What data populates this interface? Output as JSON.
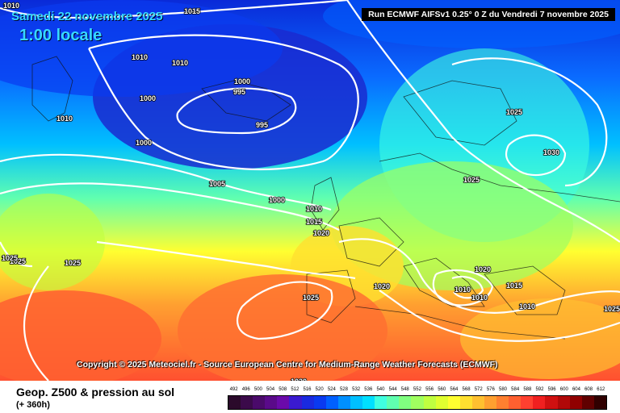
{
  "header": {
    "date": "Samedi 22 novembre 2025",
    "time": "1:00 locale",
    "run": "Run ECMWF AIFSv1 0.25° 0 Z du Vendredi 7 novembre 2025"
  },
  "copyright": "Copyright © 2025 Meteociel.fr - Source European Centre for Medium-Range Weather Forecasts (ECMWF)",
  "footer": {
    "product": "Geop. Z500 & pression au sol",
    "lead": "(+ 360h)"
  },
  "scale": {
    "labels": [
      "492",
      "496",
      "500",
      "504",
      "508",
      "512",
      "516",
      "520",
      "524",
      "528",
      "532",
      "536",
      "540",
      "544",
      "548",
      "552",
      "556",
      "560",
      "564",
      "568",
      "572",
      "576",
      "580",
      "584",
      "588",
      "592",
      "596",
      "600",
      "604",
      "608",
      "612"
    ],
    "colors": [
      "#2b0a2b",
      "#3b0a4a",
      "#4a0a6a",
      "#5a0a8a",
      "#6a0aaa",
      "#3a1ad0",
      "#1a2ae0",
      "#0a3af0",
      "#0060ff",
      "#0090ff",
      "#00c0ff",
      "#00e0ff",
      "#40ffe0",
      "#60ffb0",
      "#80ff80",
      "#a0ff60",
      "#c0ff40",
      "#e0ff30",
      "#ffff30",
      "#ffe030",
      "#ffc030",
      "#ffa030",
      "#ff8030",
      "#ff6030",
      "#ff4030",
      "#f02020",
      "#d01010",
      "#b00808",
      "#900000",
      "#600000",
      "#300000"
    ]
  },
  "isobars": [
    "1010",
    "1015",
    "1010",
    "1010",
    "1000",
    "995",
    "1000",
    "1010",
    "995",
    "1000",
    "1005",
    "1000",
    "1010",
    "1015",
    "1020",
    "1025",
    "1025",
    "1025",
    "1030",
    "1020",
    "1020",
    "1015",
    "1010",
    "1010",
    "1010",
    "1025",
    "1025",
    "1025",
    "1025",
    "1020"
  ]
}
